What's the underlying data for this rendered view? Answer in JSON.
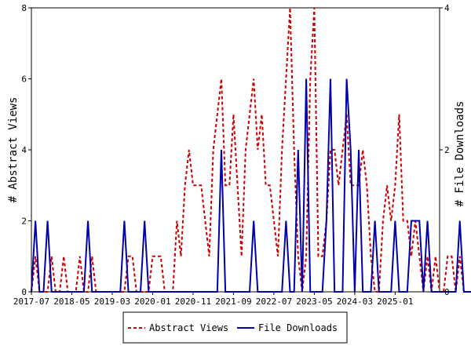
{
  "chart_data": {
    "type": "line",
    "title": "",
    "ylabel_left": "# Abstract Views",
    "ylabel_right": "# File Downloads",
    "ylim_left": [
      0,
      8
    ],
    "ylim_right": [
      0,
      4
    ],
    "yticks_left": [
      "0",
      "2",
      "4",
      "6",
      "8"
    ],
    "yticks_right": [
      "0",
      "2",
      "4"
    ],
    "x_start": "2017-07",
    "x_end": "2025-12",
    "xticks": [
      "2017-07",
      "2018-05",
      "2019-03",
      "2020-01",
      "2020-11",
      "2021-09",
      "2022-07",
      "2023-05",
      "2024-03",
      "2025-01"
    ],
    "legend_position": "bottom",
    "grid": false,
    "series": [
      {
        "name": "Abstract Views",
        "axis": "left",
        "color": "#cc0000",
        "style": "dashed",
        "values": [
          0,
          1,
          0,
          0,
          0,
          1,
          0,
          0,
          1,
          0,
          0,
          0,
          1,
          0,
          0,
          1,
          0,
          0,
          0,
          0,
          0,
          0,
          0,
          0,
          1,
          1,
          0,
          0,
          0,
          0,
          1,
          1,
          1,
          0,
          0,
          0,
          2,
          1,
          3,
          4,
          3,
          3,
          3,
          2,
          1,
          4,
          5,
          6,
          3,
          3,
          5,
          3,
          1,
          4,
          5,
          6,
          4,
          5,
          3,
          3,
          2,
          1,
          4,
          6,
          8,
          4,
          1,
          0,
          1,
          6,
          8,
          1,
          1,
          2,
          4,
          4,
          3,
          4,
          5,
          3,
          3,
          3,
          4,
          3,
          1,
          0,
          0,
          2,
          3,
          2,
          3,
          5,
          2,
          2,
          1,
          2,
          1,
          0,
          1,
          0,
          1,
          0,
          0,
          1,
          1,
          0,
          1,
          0,
          0,
          0,
          0,
          0,
          1
        ]
      },
      {
        "name": "File Downloads",
        "axis": "right",
        "color": "#0000aa",
        "style": "solid",
        "values": [
          0,
          1,
          0,
          0,
          1,
          0,
          0,
          0,
          0,
          0,
          0,
          0,
          0,
          0,
          1,
          0,
          0,
          0,
          0,
          0,
          0,
          0,
          0,
          1,
          0,
          0,
          0,
          0,
          1,
          0,
          0,
          0,
          0,
          0,
          0,
          0,
          0,
          0,
          0,
          0,
          0,
          0,
          0,
          0,
          0,
          0,
          0,
          2,
          0,
          0,
          0,
          0,
          0,
          0,
          0,
          1,
          0,
          0,
          0,
          0,
          0,
          0,
          0,
          1,
          0,
          0,
          2,
          0,
          3,
          0,
          0,
          0,
          0,
          1,
          3,
          0,
          0,
          0,
          3,
          2,
          0,
          2,
          0,
          0,
          0,
          1,
          0,
          0,
          0,
          0,
          1,
          0,
          0,
          0,
          1,
          1,
          1,
          0,
          1,
          0,
          0,
          0,
          0,
          0,
          0,
          0,
          1,
          0,
          0,
          0,
          0,
          0,
          0
        ]
      }
    ]
  }
}
